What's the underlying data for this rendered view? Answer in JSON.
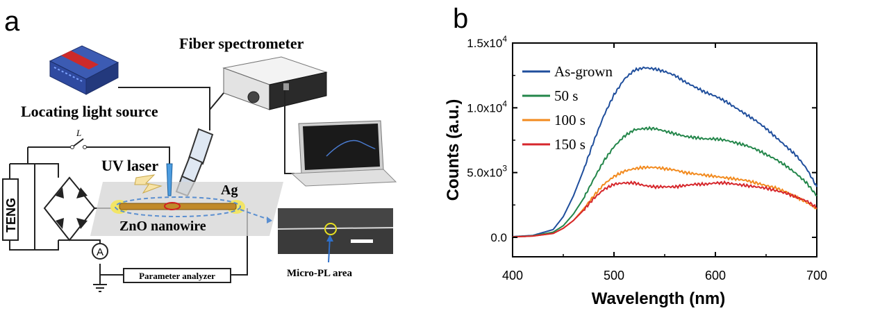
{
  "panel_a": {
    "label": "a",
    "fiber_spectrometer": "Fiber spectrometer",
    "locating_light_source": "Locating light source",
    "switch_label": "L",
    "uv_laser": "UV laser",
    "ag": "Ag",
    "teng": "TENG",
    "zno_nanowire": "ZnO  nanowire",
    "ammeter": "A",
    "parameter_analyzer": "Parameter analyzer",
    "micro_pl_area": "Micro-PL area"
  },
  "panel_b": {
    "label": "b"
  },
  "chart_data": {
    "type": "line",
    "xlabel": "Wavelength (nm)",
    "ylabel": "Counts (a.u.)",
    "xlim": [
      400,
      700
    ],
    "ylim": [
      -1500,
      15000
    ],
    "xticks": [
      400,
      500,
      600,
      700
    ],
    "yticks": [
      {
        "value": 0,
        "label": "0.0"
      },
      {
        "value": 5000,
        "mant": "5.0x10",
        "exp": "3"
      },
      {
        "value": 10000,
        "mant": "1.0x10",
        "exp": "4"
      },
      {
        "value": 15000,
        "mant": "1.5x10",
        "exp": "4"
      }
    ],
    "legend_position": "top-left",
    "series": [
      {
        "name": "As-grown",
        "color": "#1f4e9c",
        "x": [
          400,
          420,
          440,
          450,
          460,
          470,
          480,
          490,
          500,
          510,
          520,
          530,
          540,
          550,
          560,
          570,
          580,
          590,
          600,
          610,
          620,
          630,
          640,
          650,
          660,
          670,
          680,
          690,
          700
        ],
        "y": [
          60,
          150,
          600,
          1600,
          3200,
          5200,
          7400,
          9400,
          11000,
          12200,
          12900,
          13100,
          13000,
          12800,
          12500,
          12000,
          11600,
          11200,
          10900,
          10500,
          10000,
          9500,
          9000,
          8400,
          7700,
          7000,
          6300,
          5300,
          3900
        ]
      },
      {
        "name": "50 s",
        "color": "#23864a",
        "x": [
          400,
          420,
          440,
          450,
          460,
          470,
          480,
          490,
          500,
          510,
          520,
          530,
          540,
          550,
          560,
          570,
          580,
          590,
          600,
          610,
          620,
          630,
          640,
          650,
          660,
          670,
          680,
          690,
          700
        ],
        "y": [
          40,
          120,
          400,
          900,
          1800,
          3000,
          4500,
          5900,
          7000,
          7800,
          8300,
          8400,
          8400,
          8200,
          8000,
          7800,
          7700,
          7600,
          7600,
          7500,
          7300,
          7100,
          6800,
          6400,
          6000,
          5500,
          4900,
          4200,
          3200
        ]
      },
      {
        "name": "100 s",
        "color": "#f28a1e",
        "x": [
          400,
          420,
          440,
          450,
          460,
          470,
          480,
          490,
          500,
          510,
          520,
          530,
          540,
          550,
          560,
          570,
          580,
          590,
          600,
          610,
          620,
          630,
          640,
          650,
          660,
          670,
          680,
          690,
          700
        ],
        "y": [
          30,
          100,
          300,
          700,
          1300,
          2200,
          3200,
          4100,
          4700,
          5100,
          5300,
          5400,
          5400,
          5300,
          5200,
          5000,
          4900,
          4800,
          4700,
          4600,
          4500,
          4400,
          4200,
          4000,
          3800,
          3500,
          3100,
          2700,
          2200
        ]
      },
      {
        "name": "150 s",
        "color": "#d6262b",
        "x": [
          400,
          420,
          440,
          450,
          460,
          470,
          480,
          490,
          500,
          510,
          520,
          530,
          540,
          550,
          560,
          570,
          580,
          590,
          600,
          610,
          620,
          630,
          640,
          650,
          660,
          670,
          680,
          690,
          700
        ],
        "y": [
          30,
          100,
          300,
          700,
          1300,
          2100,
          3000,
          3700,
          4100,
          4200,
          4200,
          4000,
          3900,
          3900,
          3900,
          4000,
          4100,
          4100,
          4200,
          4200,
          4100,
          4000,
          3900,
          3800,
          3600,
          3400,
          3100,
          2800,
          2300
        ]
      }
    ]
  }
}
